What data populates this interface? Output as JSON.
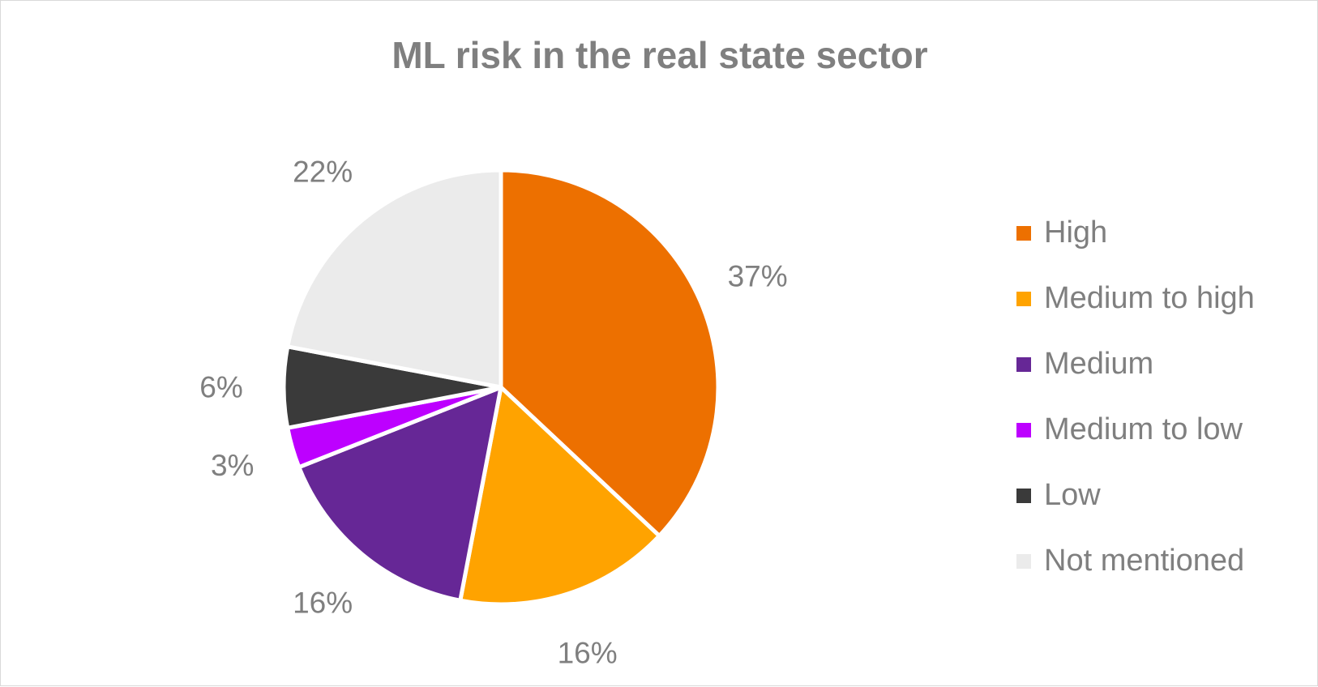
{
  "chart_data": {
    "type": "pie",
    "title": "ML risk in the real state sector",
    "legend_position": "right",
    "slices": [
      {
        "name": "High",
        "value": 37,
        "label": "37%",
        "color": "#ED7000"
      },
      {
        "name": "Medium to high",
        "value": 16,
        "label": "16%",
        "color": "#FFA300"
      },
      {
        "name": "Medium",
        "value": 16,
        "label": "16%",
        "color": "#662796"
      },
      {
        "name": "Medium to low",
        "value": 3,
        "label": "3%",
        "color": "#BD00FF"
      },
      {
        "name": "Low",
        "value": 6,
        "label": "6%",
        "color": "#3A3A3A"
      },
      {
        "name": "Not mentioned",
        "value": 22,
        "label": "22%",
        "color": "#EBEBEB"
      }
    ]
  }
}
